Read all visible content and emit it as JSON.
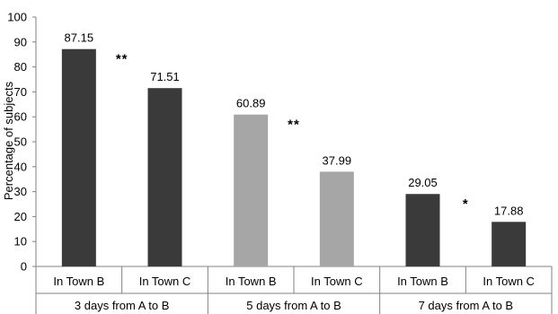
{
  "chart_data": {
    "type": "bar",
    "title": "",
    "ylabel": "Percentage of subjects",
    "xlabel": "",
    "ylim": [
      0,
      100
    ],
    "yticks": [
      0,
      10,
      20,
      30,
      40,
      50,
      60,
      70,
      80,
      90,
      100
    ],
    "grid": false,
    "legend": "none",
    "groups": [
      {
        "label": "3 days from A to B",
        "significance": "**",
        "bars": [
          {
            "category": "In Town B",
            "value": 87.15,
            "value_label": "87.15"
          },
          {
            "category": "In Town C",
            "value": 71.51,
            "value_label": "71.51"
          }
        ]
      },
      {
        "label": "5 days from A to B",
        "significance": "**",
        "bars": [
          {
            "category": "In Town B",
            "value": 60.89,
            "value_label": "60.89"
          },
          {
            "category": "In Town C",
            "value": 37.99,
            "value_label": "37.99"
          }
        ]
      },
      {
        "label": "7 days from A to B",
        "significance": "*",
        "bars": [
          {
            "category": "In Town B",
            "value": 29.05,
            "value_label": "29.05"
          },
          {
            "category": "In Town C",
            "value": 17.88,
            "value_label": "17.88"
          }
        ]
      }
    ],
    "colors": {
      "dark_bar": "#3a3a3a",
      "light_bar": "#a6a6a6",
      "axis": "#808080"
    },
    "group_colors": [
      "dark_bar",
      "light_bar",
      "dark_bar"
    ]
  }
}
